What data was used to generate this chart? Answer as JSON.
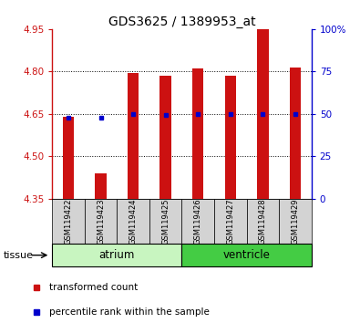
{
  "title": "GDS3625 / 1389953_at",
  "samples": [
    "GSM119422",
    "GSM119423",
    "GSM119424",
    "GSM119425",
    "GSM119426",
    "GSM119427",
    "GSM119428",
    "GSM119429"
  ],
  "bar_tops": [
    4.64,
    4.44,
    4.795,
    4.785,
    4.81,
    4.785,
    4.95,
    4.815
  ],
  "bar_bottom": 4.35,
  "percentile_values": [
    4.635,
    4.637,
    4.65,
    4.645,
    4.65,
    4.65,
    4.65,
    4.65
  ],
  "ylim_left": [
    4.35,
    4.95
  ],
  "ylim_right": [
    0,
    100
  ],
  "yticks_left": [
    4.35,
    4.5,
    4.65,
    4.8,
    4.95
  ],
  "yticks_right": [
    0,
    25,
    50,
    75,
    100
  ],
  "ytick_labels_right": [
    "0",
    "25",
    "50",
    "75",
    "100%"
  ],
  "grid_values": [
    4.5,
    4.65,
    4.8
  ],
  "groups": [
    {
      "label": "atrium",
      "count": 4,
      "color": "#c8f5c0"
    },
    {
      "label": "ventricle",
      "count": 4,
      "color": "#44cc44"
    }
  ],
  "bar_color": "#cc1111",
  "percentile_color": "#0000cc",
  "tick_color_left": "#cc1111",
  "tick_color_right": "#0000cc",
  "bar_width": 0.35,
  "tissue_label": "tissue",
  "legend_items": [
    {
      "label": "transformed count",
      "color": "#cc1111"
    },
    {
      "label": "percentile rank within the sample",
      "color": "#0000cc"
    }
  ]
}
